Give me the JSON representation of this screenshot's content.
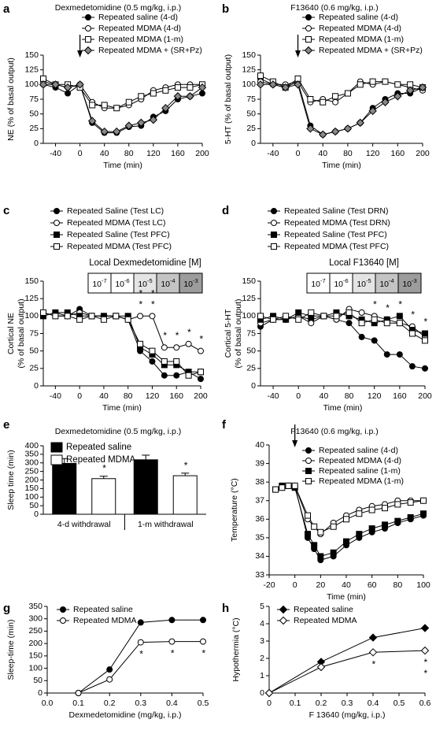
{
  "chart_data": [
    {
      "type": "line",
      "panel_label": "a",
      "title": "Dexmedetomidine (0.5 mg/kg, i.p.)",
      "x": [
        -60,
        -40,
        -20,
        0,
        20,
        40,
        60,
        80,
        100,
        120,
        140,
        160,
        180,
        200
      ],
      "xlim": [
        -60,
        200
      ],
      "xticks": [
        -40,
        0,
        40,
        80,
        120,
        160,
        200
      ],
      "ylim": [
        0,
        150
      ],
      "yticks": [
        0,
        25,
        50,
        75,
        100,
        125,
        150
      ],
      "xlabel": "Time (min)",
      "ylabel": "NE (% of basal output)",
      "arrow_at": 0,
      "series": [
        {
          "name": "Repeated saline (4-d)",
          "marker": "circle",
          "color": "#000000",
          "values": [
            100,
            95,
            85,
            100,
            35,
            18,
            18,
            28,
            30,
            45,
            55,
            75,
            80,
            85
          ]
        },
        {
          "name": "Repeated MDMA (4-d)",
          "marker": "circle",
          "color": "#ffffff",
          "values": [
            105,
            100,
            95,
            100,
            70,
            60,
            60,
            65,
            75,
            90,
            95,
            100,
            100,
            100
          ]
        },
        {
          "name": "Repeated MDMA (1-m)",
          "marker": "square",
          "color": "#ffffff",
          "values": [
            110,
            100,
            100,
            95,
            65,
            65,
            60,
            70,
            80,
            85,
            90,
            95,
            95,
            100
          ]
        },
        {
          "name": "Repeated MDMA + (SR+Pz)",
          "marker": "diamond",
          "color": "#888888",
          "values": [
            100,
            100,
            95,
            100,
            38,
            20,
            20,
            30,
            35,
            40,
            60,
            80,
            80,
            95
          ]
        }
      ]
    },
    {
      "type": "line",
      "panel_label": "b",
      "title": "F13640 (0.6 mg/kg, i.p.)",
      "x": [
        -60,
        -40,
        -20,
        0,
        20,
        40,
        60,
        80,
        100,
        120,
        140,
        160,
        180,
        200
      ],
      "xlim": [
        -60,
        200
      ],
      "xticks": [
        -40,
        0,
        40,
        80,
        120,
        160,
        200
      ],
      "ylim": [
        0,
        150
      ],
      "yticks": [
        0,
        25,
        50,
        75,
        100,
        125,
        150
      ],
      "xlabel": "Time (min)",
      "ylabel": "5-HT (% of basal output)",
      "arrow_at": 0,
      "series": [
        {
          "name": "Repeated saline (4-d)",
          "marker": "circle",
          "color": "#000000",
          "values": [
            110,
            100,
            95,
            105,
            30,
            15,
            20,
            25,
            35,
            60,
            75,
            85,
            85,
            95
          ]
        },
        {
          "name": "Repeated MDMA (4-d)",
          "marker": "circle",
          "color": "#ffffff",
          "values": [
            105,
            100,
            100,
            105,
            70,
            75,
            70,
            85,
            105,
            100,
            105,
            100,
            95,
            90
          ]
        },
        {
          "name": "Repeated MDMA (1-m)",
          "marker": "square",
          "color": "#ffffff",
          "values": [
            115,
            105,
            95,
            110,
            75,
            70,
            80,
            85,
            100,
            105,
            105,
            100,
            100,
            95
          ]
        },
        {
          "name": "Repeated MDMA + (SR+Pz)",
          "marker": "diamond",
          "color": "#888888",
          "values": [
            100,
            100,
            95,
            100,
            25,
            15,
            20,
            25,
            35,
            55,
            70,
            80,
            90,
            95
          ]
        }
      ]
    },
    {
      "type": "line",
      "panel_label": "c",
      "x": [
        -60,
        -40,
        -20,
        0,
        20,
        40,
        60,
        80,
        100,
        120,
        140,
        160,
        180,
        200
      ],
      "xlim": [
        -60,
        200
      ],
      "xticks": [
        -40,
        0,
        40,
        80,
        120,
        160,
        200
      ],
      "ylim": [
        0,
        150
      ],
      "yticks": [
        0,
        25,
        50,
        75,
        100,
        125,
        150
      ],
      "xlabel": "Time (min)",
      "ylabel": [
        "Cortical NE",
        "(% of basal output)"
      ],
      "dose_scale": {
        "label": "Local Dexmedetomidine [M]",
        "doses": [
          {
            "base": "10",
            "exp": "-7"
          },
          {
            "base": "10",
            "exp": "-6"
          },
          {
            "base": "10",
            "exp": "-5"
          },
          {
            "base": "10",
            "exp": "-4"
          },
          {
            "base": "10",
            "exp": "-3"
          }
        ]
      },
      "series": [
        {
          "name": "Repeated Saline (Test LC)",
          "marker": "circle",
          "color": "#000000",
          "values": [
            105,
            100,
            100,
            110,
            100,
            100,
            100,
            95,
            50,
            35,
            15,
            15,
            20,
            10
          ]
        },
        {
          "name": "Repeated MDMA (Test LC)",
          "marker": "circle",
          "color": "#ffffff",
          "values": [
            100,
            105,
            100,
            105,
            100,
            100,
            100,
            95,
            100,
            100,
            55,
            55,
            60,
            50
          ]
        },
        {
          "name": "Repeated Saline (Test PFC)",
          "marker": "square",
          "color": "#000000",
          "values": [
            100,
            105,
            105,
            100,
            100,
            100,
            100,
            100,
            55,
            45,
            30,
            30,
            20,
            20
          ]
        },
        {
          "name": "Repeated MDMA (Test PFC)",
          "marker": "square",
          "color": "#ffffff",
          "values": [
            105,
            100,
            100,
            95,
            100,
            95,
            100,
            95,
            60,
            50,
            35,
            35,
            15,
            20
          ]
        }
      ],
      "annotations": [
        {
          "text": "**",
          "x": 100
        },
        {
          "text": "**",
          "x": 120
        },
        {
          "text": "*",
          "x": 140
        },
        {
          "text": "*",
          "x": 160
        },
        {
          "text": "*",
          "x": 180
        },
        {
          "text": "*",
          "x": 200
        }
      ]
    },
    {
      "type": "line",
      "panel_label": "d",
      "x": [
        -60,
        -40,
        -20,
        0,
        20,
        40,
        60,
        80,
        100,
        120,
        140,
        160,
        180,
        200
      ],
      "xlim": [
        -60,
        200
      ],
      "xticks": [
        -40,
        0,
        40,
        80,
        120,
        160,
        200
      ],
      "ylim": [
        0,
        150
      ],
      "yticks": [
        0,
        25,
        50,
        75,
        100,
        125,
        150
      ],
      "xlabel": "Time (min)",
      "ylabel": [
        "Cortical 5-HT",
        "(% of basal output)"
      ],
      "dose_scale": {
        "label": "Local F13640 [M]",
        "doses": [
          {
            "base": "10",
            "exp": "-7"
          },
          {
            "base": "10",
            "exp": "-6"
          },
          {
            "base": "10",
            "exp": "-5"
          },
          {
            "base": "10",
            "exp": "-4"
          },
          {
            "base": "10",
            "exp": "-3"
          }
        ]
      },
      "series": [
        {
          "name": "Repeated Saline (Test DRN)",
          "marker": "circle",
          "color": "#000000",
          "values": [
            85,
            95,
            95,
            100,
            95,
            100,
            95,
            90,
            70,
            65,
            45,
            45,
            28,
            25
          ]
        },
        {
          "name": "Repeated MDMA (Test DRN)",
          "marker": "circle",
          "color": "#ffffff",
          "values": [
            90,
            95,
            95,
            100,
            90,
            100,
            95,
            110,
            105,
            100,
            95,
            90,
            85,
            70
          ]
        },
        {
          "name": "Repeated Saline (Test PFC)",
          "marker": "square",
          "color": "#000000",
          "values": [
            95,
            100,
            95,
            105,
            100,
            100,
            105,
            100,
            95,
            90,
            95,
            100,
            80,
            75
          ]
        },
        {
          "name": "Repeated MDMA (Test PFC)",
          "marker": "square",
          "color": "#ffffff",
          "values": [
            100,
            95,
            100,
            95,
            105,
            100,
            100,
            105,
            90,
            95,
            90,
            90,
            75,
            65
          ]
        }
      ],
      "annotations": [
        {
          "text": "*",
          "x": 120
        },
        {
          "text": "*",
          "x": 140
        },
        {
          "text": "*",
          "x": 160
        },
        {
          "text": "*",
          "x": 180
        },
        {
          "text": "*",
          "x": 200
        }
      ]
    },
    {
      "type": "bar",
      "panel_label": "e",
      "title": "Dexmedetomidine (0.5 mg/kg, i.p.)",
      "categories": [
        "4-d withdrawal",
        "1-m withdrawal"
      ],
      "ylim": [
        0,
        400
      ],
      "yticks": [
        0,
        50,
        100,
        150,
        200,
        250,
        300,
        350,
        400
      ],
      "ylabel": "Sleep time (min)",
      "series": [
        {
          "name": "Repeated saline",
          "color": "#000000",
          "values": [
            297,
            318
          ],
          "errors": [
            28,
            27
          ]
        },
        {
          "name": "Repeated MDMA",
          "color": "#ffffff",
          "values": [
            208,
            225
          ],
          "errors": [
            14,
            15
          ]
        }
      ],
      "annotations": [
        {
          "text": "*",
          "category": 0,
          "series": 1
        },
        {
          "text": "*",
          "category": 1,
          "series": 1
        }
      ]
    },
    {
      "type": "line",
      "panel_label": "f",
      "title": "F13640 (0.6 mg/kg, i.p.)",
      "x": [
        -15,
        -10,
        -5,
        0,
        10,
        15,
        20,
        30,
        40,
        50,
        60,
        70,
        80,
        90,
        100
      ],
      "xlim": [
        -20,
        100
      ],
      "xticks": [
        -20,
        0,
        20,
        40,
        60,
        80,
        100
      ],
      "ylim": [
        33,
        40
      ],
      "yticks": [
        33,
        34,
        35,
        36,
        37,
        38,
        39,
        40
      ],
      "xlabel": "Time (min)",
      "ylabel": "Temperature (°C)",
      "arrow_at": 0,
      "series": [
        {
          "name": "Repeated saline (4-d)",
          "marker": "circle",
          "color": "#000000",
          "values": [
            37.6,
            37.8,
            37.8,
            37.8,
            35.0,
            34.4,
            33.8,
            34.0,
            34.6,
            35.0,
            35.3,
            35.5,
            35.8,
            36.0,
            36.2
          ]
        },
        {
          "name": "Repeated MDMA (4-d)",
          "marker": "circle",
          "color": "#ffffff",
          "values": [
            37.6,
            37.7,
            37.8,
            37.8,
            36.0,
            35.6,
            35.2,
            35.8,
            36.2,
            36.5,
            36.7,
            36.8,
            37.0,
            37.0,
            37.0
          ]
        },
        {
          "name": "Repeated saline (1-m)",
          "marker": "square",
          "color": "#000000",
          "values": [
            37.6,
            37.8,
            37.8,
            37.7,
            35.2,
            34.6,
            34.0,
            34.2,
            34.8,
            35.2,
            35.5,
            35.7,
            35.9,
            36.1,
            36.3
          ]
        },
        {
          "name": "Repeated MDMA (1-m)",
          "marker": "square",
          "color": "#ffffff",
          "values": [
            37.6,
            37.7,
            37.8,
            37.8,
            36.2,
            35.6,
            35.3,
            35.6,
            36.0,
            36.3,
            36.5,
            36.6,
            36.8,
            36.9,
            37.0
          ]
        }
      ]
    },
    {
      "type": "line",
      "panel_label": "g",
      "x": [
        0.1,
        0.2,
        0.3,
        0.4,
        0.5
      ],
      "xlim": [
        0,
        0.5
      ],
      "xticks": [
        {
          "value": 0,
          "label": "0.0"
        },
        0.1,
        0.2,
        0.3,
        0.4,
        0.5
      ],
      "ylim": [
        0,
        350
      ],
      "yticks": [
        0,
        50,
        100,
        150,
        200,
        250,
        300,
        350
      ],
      "xlabel": "Dexmedetomidine (mg/kg, i.p.)",
      "ylabel": "Sleep-time (min)",
      "series": [
        {
          "name": "Repeated saline",
          "marker": "circle",
          "color": "#000000",
          "values": [
            0,
            95,
            285,
            295,
            295
          ]
        },
        {
          "name": "Repeated MDMA",
          "marker": "circle",
          "color": "#ffffff",
          "values": [
            0,
            55,
            205,
            208,
            208
          ]
        }
      ],
      "annotations": [
        {
          "text": "*",
          "x": 0.3
        },
        {
          "text": "*",
          "x": 0.4
        },
        {
          "text": "*",
          "x": 0.5
        }
      ]
    },
    {
      "type": "line",
      "panel_label": "h",
      "x": [
        0,
        0.2,
        0.4,
        0.6
      ],
      "xlim": [
        0,
        0.6
      ],
      "xticks": [
        0,
        0.1,
        0.2,
        0.3,
        0.4,
        0.5,
        0.6
      ],
      "ylim": [
        0,
        5
      ],
      "yticks": [
        0,
        1,
        2,
        3,
        4,
        5
      ],
      "xlabel": "F 13640 (mg/kg, i.p.)",
      "ylabel": "Hypothermia (°C)",
      "series": [
        {
          "name": "Repeated saline",
          "marker": "diamond",
          "color": "#000000",
          "values": [
            0,
            1.8,
            3.2,
            3.75
          ]
        },
        {
          "name": "Repeated MDMA",
          "marker": "diamond",
          "color": "#ffffff",
          "values": [
            0,
            1.5,
            2.35,
            2.45
          ]
        }
      ],
      "annotations": [
        {
          "text": "*",
          "x": 0.4
        },
        {
          "text": "**",
          "x": 0.6
        }
      ]
    }
  ]
}
